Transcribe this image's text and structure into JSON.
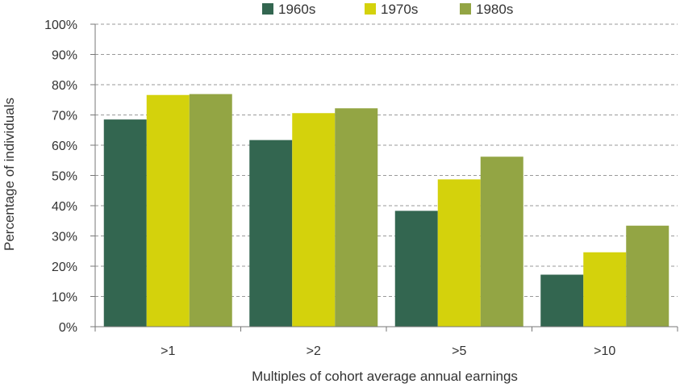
{
  "chart_data": {
    "type": "bar",
    "categories": [
      ">1",
      ">2",
      ">5",
      ">10"
    ],
    "series": [
      {
        "name": "1960s",
        "color": "#336650",
        "values": [
          68.5,
          61.7,
          38.3,
          17.2
        ]
      },
      {
        "name": "1970s",
        "color": "#d4d20c",
        "values": [
          76.6,
          70.6,
          48.7,
          24.6
        ]
      },
      {
        "name": "1980s",
        "color": "#93a544",
        "values": [
          76.9,
          72.2,
          56.2,
          33.4
        ]
      }
    ],
    "xlabel": "Multiples of cohort average annual earnings",
    "ylabel": "Percentage of individuals",
    "ylim": [
      0,
      100
    ],
    "yticks": [
      "0%",
      "10%",
      "20%",
      "30%",
      "40%",
      "50%",
      "60%",
      "70%",
      "80%",
      "90%",
      "100%"
    ],
    "grid": true,
    "legend_position": "top"
  }
}
